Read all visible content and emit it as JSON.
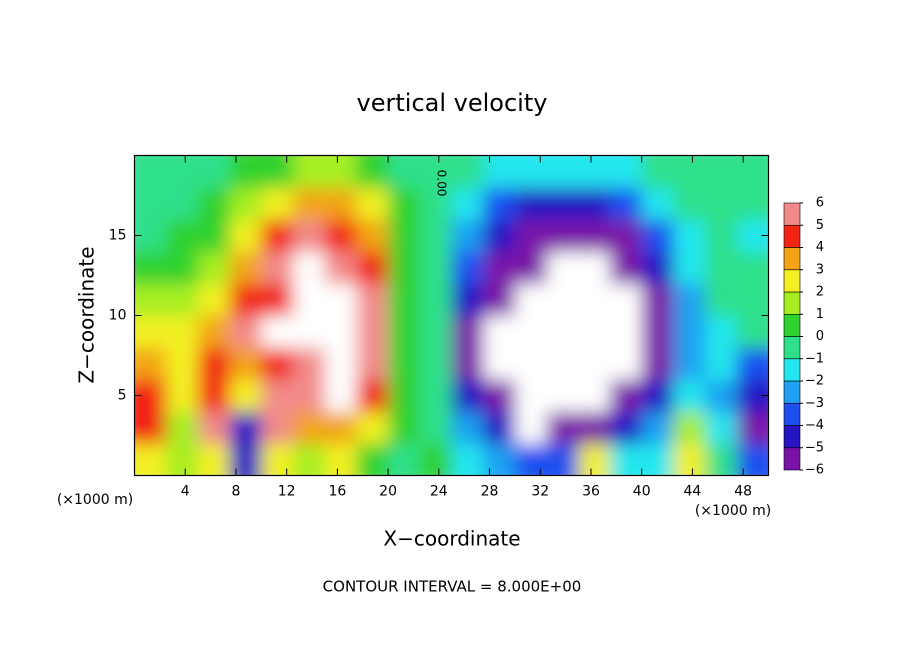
{
  "chart_data": {
    "type": "contour",
    "title": "vertical velocity",
    "x_label": "X−coordinate",
    "y_label": "Z−coordinate",
    "x_unit_label": "(×1000 m)",
    "footer": "CONTOUR INTERVAL = 8.000E+00",
    "contour_label": "0.00",
    "xlim": [
      0,
      50
    ],
    "ylim": [
      0,
      20
    ],
    "xticks": [
      4,
      8,
      12,
      16,
      20,
      24,
      28,
      32,
      36,
      40,
      44,
      48
    ],
    "yticks": [
      5,
      10,
      15
    ],
    "x": [
      1.25,
      3.75,
      6.25,
      8.75,
      11.25,
      13.75,
      16.25,
      18.75,
      21.25,
      23.75,
      26.25,
      28.75,
      31.25,
      33.75,
      36.25,
      38.75,
      41.25,
      43.75,
      46.25,
      48.75
    ],
    "y": [
      1,
      3,
      5,
      7,
      9,
      11,
      13,
      15,
      17,
      19
    ],
    "values": [
      [
        3,
        2,
        3,
        -4,
        3,
        2,
        3,
        1,
        0,
        0.5,
        -1,
        -2,
        -3,
        -3,
        3,
        -1,
        -1,
        3,
        0,
        -3
      ],
      [
        5,
        2,
        6,
        -4,
        6,
        4,
        4,
        3,
        0.5,
        0,
        -2,
        -4,
        -7,
        -6,
        -5,
        -4,
        -2,
        2,
        -1,
        -5
      ],
      [
        5,
        3,
        5,
        3,
        6,
        6,
        7,
        5,
        1,
        0,
        -4,
        -6,
        -7,
        -7,
        -7,
        -5,
        -4,
        -1,
        -2,
        -4
      ],
      [
        4,
        3,
        5,
        4,
        5,
        6,
        7,
        6,
        1,
        0,
        -5,
        -7,
        -7,
        -7,
        -7,
        -7,
        -5,
        -2,
        -1,
        -3
      ],
      [
        3,
        3,
        4,
        6,
        7,
        7,
        7,
        6,
        1,
        -0.5,
        -5,
        -7,
        -7,
        -7,
        -7,
        -7,
        -5,
        -2,
        -1,
        0
      ],
      [
        2,
        2,
        3,
        5,
        5,
        7,
        7,
        6,
        1,
        0,
        -4,
        -6,
        -7,
        -7,
        -7,
        -7,
        -5,
        -2,
        -0.5,
        0
      ],
      [
        0.5,
        1,
        2,
        4,
        6,
        7,
        6,
        5,
        1,
        0,
        -3,
        -5,
        -6,
        -7,
        -7,
        -6,
        -4,
        -1.5,
        0,
        0
      ],
      [
        0,
        0.5,
        1,
        3,
        5,
        6,
        5,
        4,
        1,
        0,
        -2,
        -4,
        -5,
        -6,
        -6,
        -5,
        -3,
        -1,
        0,
        -1
      ],
      [
        0,
        0,
        0.5,
        1.5,
        3,
        4,
        4,
        3,
        0.5,
        0,
        -1,
        -3,
        -4,
        -4,
        -4,
        -3,
        -1.5,
        -0.5,
        0,
        0
      ],
      [
        0,
        0,
        0,
        0.5,
        1,
        1.5,
        1.5,
        1,
        0,
        0,
        -0.5,
        -1,
        -1.5,
        -1.5,
        -1.5,
        -1,
        -0.5,
        0,
        0,
        0
      ]
    ],
    "levels": [
      {
        "value": -6,
        "label": "−6"
      },
      {
        "value": -5,
        "label": "−5"
      },
      {
        "value": -4,
        "label": "−4"
      },
      {
        "value": -3,
        "label": "−3"
      },
      {
        "value": -2,
        "label": "−2"
      },
      {
        "value": -1,
        "label": "−1"
      },
      0,
      1,
      2,
      3,
      4,
      5,
      6
    ],
    "colors": [
      "#7a12a8",
      "#2414c4",
      "#1f4ff0",
      "#1fa0f2",
      "#22e6ee",
      "#2ee08a",
      "#2fd12f",
      "#a6ee22",
      "#f2f022",
      "#f2a414",
      "#f22414",
      "#f28a8a"
    ]
  }
}
